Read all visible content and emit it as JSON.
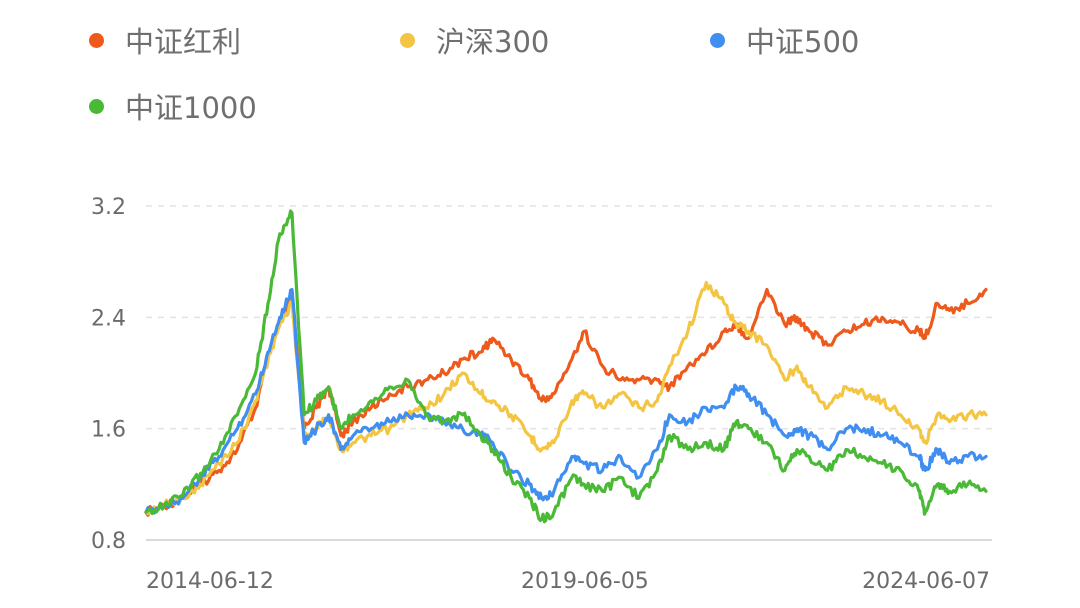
{
  "chart_data": {
    "type": "line",
    "title": "",
    "xlabel": "",
    "ylabel": "",
    "ylim": [
      0.8,
      3.2
    ],
    "yticks": [
      "0.8",
      "1.6",
      "2.4",
      "3.2"
    ],
    "xticks": [
      "2014-06-12",
      "2019-06-05",
      "2024-06-07"
    ],
    "xlim": [
      "2013-06-01",
      "2024-12-31"
    ],
    "grid": true,
    "legend_position": "top",
    "x": [
      "2013-06",
      "2013-09",
      "2013-12",
      "2014-03",
      "2014-06",
      "2014-09",
      "2014-12",
      "2015-02",
      "2015-04",
      "2015-06",
      "2015-08",
      "2015-10",
      "2015-12",
      "2016-02",
      "2016-04",
      "2016-07",
      "2016-10",
      "2017-01",
      "2017-04",
      "2017-07",
      "2017-10",
      "2018-01",
      "2018-03",
      "2018-06",
      "2018-09",
      "2018-11",
      "2019-01",
      "2019-04",
      "2019-06",
      "2019-09",
      "2019-12",
      "2020-03",
      "2020-06",
      "2020-08",
      "2020-11",
      "2021-02",
      "2021-05",
      "2021-07",
      "2021-09",
      "2021-12",
      "2022-03",
      "2022-05",
      "2022-07",
      "2022-10",
      "2023-01",
      "2023-04",
      "2023-07",
      "2023-10",
      "2024-01",
      "2024-02",
      "2024-04",
      "2024-06",
      "2024-09",
      "2024-12"
    ],
    "series": [
      {
        "name": "中证红利",
        "color": "#ee5a1c",
        "values": [
          1.0,
          1.05,
          1.1,
          1.2,
          1.3,
          1.45,
          1.75,
          2.1,
          2.35,
          2.55,
          1.6,
          1.75,
          1.9,
          1.55,
          1.65,
          1.75,
          1.85,
          1.9,
          1.95,
          2.0,
          2.1,
          2.15,
          2.25,
          2.1,
          1.95,
          1.8,
          1.85,
          2.1,
          2.3,
          2.05,
          1.95,
          1.95,
          1.95,
          1.9,
          2.05,
          2.15,
          2.3,
          2.35,
          2.25,
          2.6,
          2.35,
          2.4,
          2.3,
          2.2,
          2.3,
          2.35,
          2.4,
          2.35,
          2.3,
          2.25,
          2.5,
          2.45,
          2.5,
          2.6
        ]
      },
      {
        "name": "沪深300",
        "color": "#f4c542",
        "values": [
          1.0,
          1.05,
          1.1,
          1.2,
          1.35,
          1.5,
          1.8,
          2.1,
          2.35,
          2.5,
          1.55,
          1.6,
          1.7,
          1.45,
          1.5,
          1.55,
          1.6,
          1.7,
          1.75,
          1.85,
          2.0,
          1.85,
          1.8,
          1.7,
          1.55,
          1.45,
          1.5,
          1.8,
          1.85,
          1.75,
          1.85,
          1.75,
          1.8,
          2.05,
          2.3,
          2.65,
          2.5,
          2.35,
          2.3,
          2.2,
          1.95,
          2.05,
          1.9,
          1.75,
          1.9,
          1.85,
          1.8,
          1.7,
          1.6,
          1.5,
          1.7,
          1.65,
          1.7,
          1.7
        ]
      },
      {
        "name": "中证500",
        "color": "#3f8ef0",
        "values": [
          1.0,
          1.05,
          1.1,
          1.25,
          1.4,
          1.6,
          1.85,
          2.15,
          2.4,
          2.6,
          1.5,
          1.6,
          1.7,
          1.45,
          1.55,
          1.6,
          1.65,
          1.7,
          1.7,
          1.65,
          1.6,
          1.55,
          1.5,
          1.3,
          1.2,
          1.1,
          1.15,
          1.4,
          1.35,
          1.3,
          1.4,
          1.25,
          1.45,
          1.7,
          1.65,
          1.75,
          1.75,
          1.9,
          1.85,
          1.7,
          1.55,
          1.6,
          1.55,
          1.45,
          1.6,
          1.6,
          1.55,
          1.5,
          1.4,
          1.3,
          1.45,
          1.35,
          1.4,
          1.4
        ]
      },
      {
        "name": "中证1000",
        "color": "#49b936",
        "values": [
          1.0,
          1.05,
          1.12,
          1.28,
          1.45,
          1.7,
          2.0,
          2.5,
          3.0,
          3.15,
          1.7,
          1.8,
          1.9,
          1.6,
          1.7,
          1.8,
          1.9,
          1.95,
          1.7,
          1.65,
          1.7,
          1.55,
          1.45,
          1.25,
          1.1,
          0.95,
          1.0,
          1.25,
          1.2,
          1.15,
          1.25,
          1.1,
          1.3,
          1.55,
          1.45,
          1.5,
          1.45,
          1.65,
          1.6,
          1.5,
          1.3,
          1.45,
          1.4,
          1.3,
          1.45,
          1.4,
          1.35,
          1.3,
          1.15,
          1.0,
          1.2,
          1.15,
          1.2,
          1.15
        ]
      }
    ]
  }
}
